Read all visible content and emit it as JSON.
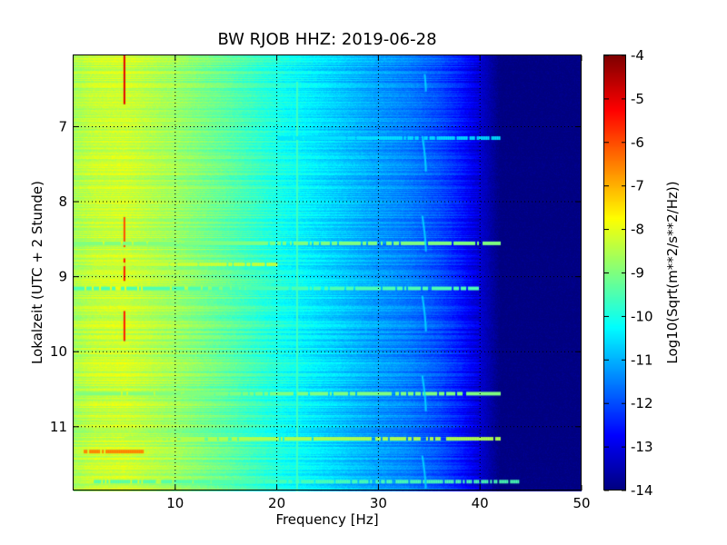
{
  "chart_data": {
    "type": "heatmap",
    "title": "BW RJOB HHZ: 2019-06-28",
    "xlabel": "Frequency [Hz]",
    "ylabel": "Lokalzeit (UTC + 2 Stunde)",
    "xlim": [
      0,
      50
    ],
    "ylim": [
      6.05,
      11.85
    ],
    "y_inverted": true,
    "x_ticks": [
      "10",
      "20",
      "30",
      "40",
      "50"
    ],
    "y_ticks": [
      "7",
      "8",
      "9",
      "10",
      "11"
    ],
    "grid": true,
    "colormap": "jet",
    "colorbar": {
      "label": "Log10(Sqrt(m**2/s**2/Hz))",
      "range": [
        -14,
        -4
      ],
      "ticks": [
        "-4",
        "-5",
        "-6",
        "-7",
        "-8",
        "-9",
        "-10",
        "-11",
        "-12",
        "-13",
        "-14"
      ]
    },
    "spectral_profile": {
      "frequency_hz": [
        0,
        2,
        5,
        10,
        15,
        20,
        25,
        30,
        33,
        36,
        38,
        40,
        41,
        42,
        45,
        50
      ],
      "log10_psd": [
        -8.6,
        -8.3,
        -8.2,
        -8.7,
        -9.3,
        -10.0,
        -10.6,
        -11.2,
        -11.5,
        -12.0,
        -12.5,
        -13.2,
        -13.6,
        -14.0,
        -14.0,
        -14.0
      ]
    },
    "features": [
      {
        "type": "vertical_line",
        "frequency_hz": 5,
        "from": 6.05,
        "to": 6.7,
        "value": -5.0
      },
      {
        "type": "vertical_line",
        "frequency_hz": 5,
        "from": 8.2,
        "to": 8.6,
        "value": -6.0
      },
      {
        "type": "vertical_line",
        "frequency_hz": 5,
        "from": 8.75,
        "to": 9.05,
        "value": -5.5
      },
      {
        "type": "vertical_line",
        "frequency_hz": 5,
        "from": 9.45,
        "to": 9.85,
        "value": -5.5
      },
      {
        "type": "vertical_line",
        "frequency_hz": 22,
        "from": 6.4,
        "to": 11.85,
        "value": -9.6
      },
      {
        "type": "horizontal_band",
        "time": 7.15,
        "f_from": 20,
        "f_to": 42,
        "value": -10.5
      },
      {
        "type": "horizontal_band",
        "time": 8.55,
        "f_from": 0,
        "f_to": 42,
        "value": -9.0
      },
      {
        "type": "horizontal_band",
        "time": 8.83,
        "f_from": 2,
        "f_to": 20,
        "value": -8.2
      },
      {
        "type": "horizontal_band",
        "time": 9.15,
        "f_from": 0,
        "f_to": 40,
        "value": -9.5
      },
      {
        "type": "horizontal_band",
        "time": 10.55,
        "f_from": 0,
        "f_to": 42,
        "value": -9.0
      },
      {
        "type": "horizontal_band",
        "time": 11.15,
        "f_from": 5,
        "f_to": 42,
        "value": -8.5
      },
      {
        "type": "horizontal_band",
        "time": 11.32,
        "f_from": 1,
        "f_to": 7,
        "value": -6.5
      },
      {
        "type": "horizontal_band",
        "time": 11.72,
        "f_from": 2,
        "f_to": 44,
        "value": -9.5
      },
      {
        "type": "wandering_line",
        "frequency_hz": 34.5,
        "from": 6.3,
        "to": 11.8,
        "value": -10.5
      }
    ]
  }
}
